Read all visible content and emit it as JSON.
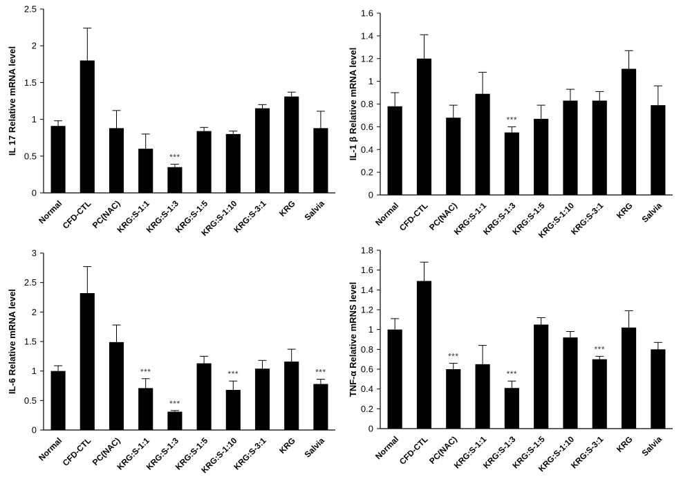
{
  "chart_data": [
    {
      "type": "bar",
      "title": "",
      "xlabel": "",
      "ylabel": "IL 17 Relative mRNA level",
      "ylim": [
        0,
        2.5
      ],
      "yticks": [
        "0",
        "0.5",
        "1",
        "1.5",
        "2",
        "2.5"
      ],
      "ytick_values": [
        0,
        0.5,
        1,
        1.5,
        2,
        2.5
      ],
      "categories": [
        "Normal",
        "CFD-CTL",
        "PC(NAC)",
        "KRG:S-1:1",
        "KRG:S-1:3",
        "KRG:S-1:5",
        "KRG:S-1:10",
        "KRG:S-3:1",
        "KRG",
        "Salvia"
      ],
      "values": [
        0.91,
        1.8,
        0.88,
        0.6,
        0.35,
        0.84,
        0.8,
        1.15,
        1.31,
        0.88
      ],
      "errors": [
        0.07,
        0.44,
        0.24,
        0.2,
        0.04,
        0.05,
        0.04,
        0.05,
        0.06,
        0.23
      ],
      "annotations": [
        "",
        "",
        "",
        "",
        "***",
        "",
        "",
        "",
        "",
        ""
      ],
      "color": "#000000"
    },
    {
      "type": "bar",
      "title": "",
      "xlabel": "",
      "ylabel": "IL-1 β Relative mRNA level",
      "ylim": [
        0,
        1.6
      ],
      "yticks": [
        "0",
        "0.2",
        "0.4",
        "0.6",
        "0.8",
        "1",
        "1.2",
        "1.4",
        "1.6"
      ],
      "ytick_values": [
        0,
        0.2,
        0.4,
        0.6,
        0.8,
        1,
        1.2,
        1.4,
        1.6
      ],
      "categories": [
        "Normal",
        "CFD-CTL",
        "PC(NAC)",
        "KRG:S-1:1",
        "KRG:S-1:3",
        "KRG:S-1:5",
        "KRG:S-1:10",
        "KRG:S-3:1",
        "KRG",
        "Salvia"
      ],
      "values": [
        0.78,
        1.2,
        0.68,
        0.89,
        0.55,
        0.67,
        0.83,
        0.83,
        1.11,
        0.79
      ],
      "errors": [
        0.12,
        0.21,
        0.11,
        0.19,
        0.05,
        0.12,
        0.1,
        0.08,
        0.16,
        0.17
      ],
      "annotations": [
        "",
        "",
        "",
        "",
        "***",
        "",
        "",
        "",
        "",
        ""
      ],
      "color": "#000000"
    },
    {
      "type": "bar",
      "title": "",
      "xlabel": "",
      "ylabel": "IL-6 Relative mRNA level",
      "ylim": [
        0,
        3
      ],
      "yticks": [
        "0",
        "0.5",
        "1",
        "1.5",
        "2",
        "2.5",
        "3"
      ],
      "ytick_values": [
        0,
        0.5,
        1,
        1.5,
        2,
        2.5,
        3
      ],
      "categories": [
        "Normal",
        "CFD-CTL",
        "PC(NAC)",
        "KRG:S-1:1",
        "KRG:S-1:3",
        "KRG:S-1:5",
        "KRG:S-1:10",
        "KRG:S-3:1",
        "KRG",
        "Salvia"
      ],
      "values": [
        1.0,
        2.32,
        1.49,
        0.71,
        0.31,
        1.13,
        0.68,
        1.04,
        1.16,
        0.78
      ],
      "errors": [
        0.09,
        0.45,
        0.29,
        0.16,
        0.02,
        0.12,
        0.15,
        0.14,
        0.21,
        0.08
      ],
      "annotations": [
        "",
        "",
        "",
        "***",
        "***",
        "",
        "***",
        "",
        "",
        "***"
      ],
      "color": "#000000"
    },
    {
      "type": "bar",
      "title": "",
      "xlabel": "",
      "ylabel": "TNF-α Relative mRNS level",
      "ylim": [
        0,
        1.8
      ],
      "yticks": [
        "0",
        "0.2",
        "0.4",
        "0.6",
        "0.8",
        "1",
        "1.2",
        "1.4",
        "1.6",
        "1.8"
      ],
      "ytick_values": [
        0,
        0.2,
        0.4,
        0.6,
        0.8,
        1,
        1.2,
        1.4,
        1.6,
        1.8
      ],
      "categories": [
        "Normal",
        "CFD-CTL",
        "PC(NAC)",
        "KRG:S-1:1",
        "KRG:S-1:3",
        "KRG:S-1:5",
        "KRG:S-1:10",
        "KRG:S-3:1",
        "KRG",
        "Salvia"
      ],
      "values": [
        1.0,
        1.49,
        0.6,
        0.65,
        0.41,
        1.05,
        0.92,
        0.7,
        1.02,
        0.8
      ],
      "errors": [
        0.11,
        0.19,
        0.06,
        0.19,
        0.07,
        0.07,
        0.06,
        0.03,
        0.17,
        0.07
      ],
      "annotations": [
        "",
        "",
        "***",
        "",
        "***",
        "",
        "",
        "***",
        "",
        ""
      ],
      "color": "#000000"
    }
  ]
}
